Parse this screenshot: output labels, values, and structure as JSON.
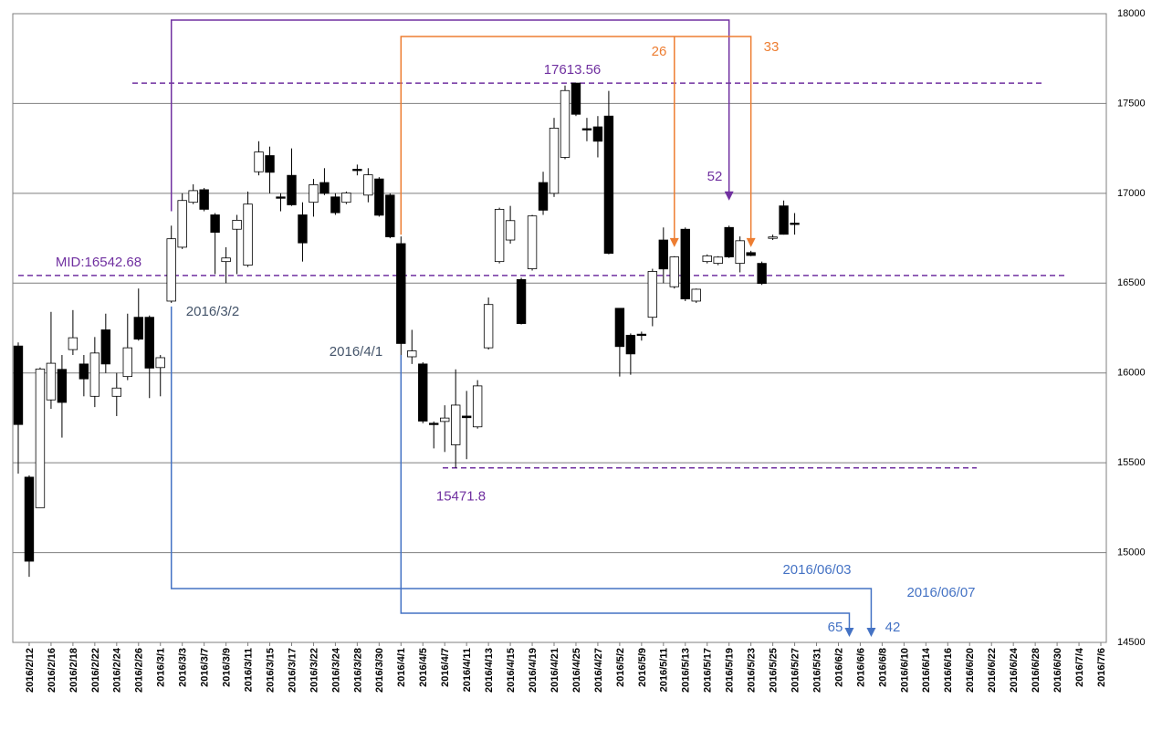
{
  "chart_data": {
    "type": "candlestick",
    "categories": [
      null,
      "2016/2/12",
      null,
      "2016/2/16",
      null,
      "2016/2/18",
      null,
      "2016/2/22",
      null,
      "2016/2/24",
      null,
      "2016/2/26",
      null,
      "2016/3/1",
      null,
      "2016/3/3",
      null,
      "2016/3/7",
      null,
      "2016/3/9",
      null,
      "2016/3/11",
      null,
      "2016/3/15",
      null,
      "2016/3/17",
      null,
      "2016/3/22",
      null,
      "2016/3/24",
      null,
      "2016/3/28",
      null,
      "2016/3/30",
      null,
      "2016/4/1",
      null,
      "2016/4/5",
      null,
      "2016/4/7",
      null,
      "2016/4/11",
      null,
      "2016/4/13",
      null,
      "2016/4/15",
      null,
      "2016/4/19",
      null,
      "2016/4/21",
      null,
      "2016/4/25",
      null,
      "2016/4/27",
      null,
      "2016/5/2",
      null,
      "2016/5/9",
      null,
      "2016/5/11",
      null,
      "2016/5/13",
      null,
      "2016/5/17",
      null,
      "2016/5/19",
      null,
      "2016/5/23",
      null,
      "2016/5/25",
      null,
      "2016/5/27",
      null,
      "2016/5/31",
      null,
      "2016/6/2",
      null,
      "2016/6/6",
      null,
      "2016/6/8",
      null,
      "2016/6/10",
      null,
      "2016/6/14",
      null,
      "2016/6/16",
      null,
      "2016/6/20",
      null,
      "2016/6/22",
      null,
      "2016/6/24",
      null,
      "2016/6/28",
      null,
      "2016/6/30",
      null,
      "2016/7/4",
      null,
      "2016/7/6"
    ],
    "open": [
      16150,
      15420,
      15250,
      15850,
      16020,
      16130,
      16050,
      15870,
      16240,
      15870,
      15980,
      16310,
      16310,
      16030,
      16400,
      16700,
      16950,
      17020,
      16880,
      16620,
      16800,
      16600,
      17120,
      17210,
      16980,
      17100,
      16880,
      16950,
      17060,
      16980,
      16950,
      17134,
      16990,
      17080,
      16990,
      16720,
      16090,
      16050,
      15720,
      15730,
      15600,
      15760,
      15700,
      16140,
      16620,
      16740,
      16520,
      16580,
      17060,
      17000,
      17200,
      17613.56,
      17360,
      17370,
      17430,
      16360,
      16210,
      16216,
      16310,
      16740,
      16480,
      16800,
      16400,
      16620,
      16610,
      16810,
      16610,
      16670,
      16610,
      16750,
      16930,
      16834,
      null,
      null,
      null,
      null,
      null,
      null,
      null,
      null,
      null,
      null,
      null,
      null,
      null,
      null,
      null,
      null,
      null,
      null,
      null,
      null,
      null,
      null,
      null,
      null,
      null,
      null,
      null,
      null
    ],
    "high": [
      16170,
      15430,
      16030,
      16340,
      16100,
      16350,
      16100,
      16200,
      16330,
      16000,
      16330,
      16470,
      16320,
      16100,
      16820,
      17000,
      17050,
      17030,
      16890,
      16700,
      16880,
      17010,
      17290,
      17260,
      17000,
      17250,
      16950,
      17080,
      17140,
      17000,
      17010,
      17160,
      17140,
      17090,
      17000,
      16760,
      16240,
      16060,
      15730,
      15820,
      16020,
      15900,
      15960,
      16420,
      16920,
      16930,
      16530,
      16880,
      17120,
      17420,
      17600,
      17613.56,
      17420,
      17430,
      17570,
      16360,
      16220,
      16230,
      16580,
      16810,
      16650,
      16810,
      16470,
      16660,
      16650,
      16820,
      16760,
      16680,
      16620,
      16770,
      16960,
      16890,
      null,
      null,
      null,
      null,
      null,
      null,
      null,
      null,
      null,
      null,
      null,
      null,
      null,
      null,
      null,
      null,
      null,
      null,
      null,
      null,
      null,
      null,
      null,
      null,
      null,
      null,
      null,
      null
    ],
    "low": [
      15440,
      14865,
      15250,
      15800,
      15640,
      16100,
      15870,
      15810,
      16000,
      15760,
      15960,
      16180,
      15860,
      15870,
      16390,
      16690,
      16940,
      16900,
      16550,
      16500,
      16550,
      16590,
      17100,
      17000,
      16900,
      16930,
      16620,
      16870,
      16990,
      16880,
      16940,
      17100,
      16950,
      16870,
      16750,
      16100,
      16050,
      15720,
      15580,
      15560,
      15471.8,
      15520,
      15690,
      16130,
      16610,
      16720,
      16270,
      16570,
      16880,
      16980,
      17190,
      17430,
      17290,
      17200,
      16660,
      15980,
      15990,
      16180,
      16260,
      16500,
      16470,
      16400,
      16390,
      16610,
      16600,
      16640,
      16560,
      16650,
      16490,
      16740,
      16770,
      16770,
      null,
      null,
      null,
      null,
      null,
      null,
      null,
      null,
      null,
      null,
      null,
      null,
      null,
      null,
      null,
      null,
      null,
      null,
      null,
      null,
      null,
      null,
      null,
      null,
      null,
      null,
      null,
      null
    ],
    "close": [
      15713,
      14952,
      16022,
      16054,
      15836,
      16196,
      15967,
      16111,
      16050,
      15916,
      16140,
      16188,
      16027,
      16085,
      16747,
      16960,
      17015,
      16911,
      16783,
      16640,
      16850,
      16940,
      17230,
      17117,
      16974,
      16936,
      16724,
      17048,
      17000,
      16892,
      17002,
      17134,
      17103,
      16878,
      16758,
      16164,
      16123,
      15732,
      15715,
      15749,
      15821,
      15751,
      15928,
      16381,
      16911,
      16848,
      16275,
      16874,
      16906,
      17363,
      17572,
      17440,
      17353,
      17290,
      16666,
      16147,
      16106,
      16216,
      16565,
      16579,
      16646,
      16412,
      16466,
      16652,
      16645,
      16646,
      16736,
      16654,
      16498,
      16757,
      16772,
      16834,
      null,
      null,
      null,
      null,
      null,
      null,
      null,
      null,
      null,
      null,
      null,
      null,
      null,
      null,
      null,
      null,
      null,
      null,
      null,
      null,
      null,
      null,
      null,
      null,
      null,
      null,
      null,
      null
    ],
    "ylim": [
      14500,
      18000
    ],
    "yticks": [
      14500,
      15000,
      15500,
      16000,
      16500,
      17000,
      17500,
      18000
    ],
    "grid": true,
    "levels": [
      {
        "value": 17613.56,
        "label": "17613.56"
      },
      {
        "value": 16542.68,
        "label": "MID:16542.68"
      },
      {
        "value": 15471.8,
        "label": "15471.8"
      }
    ],
    "level_color": "#7030a0",
    "markers": [
      "2016/3/2",
      "2016/4/1"
    ],
    "spans": [
      52,
      26,
      33
    ],
    "projections": [
      {
        "date": "2016/06/03",
        "count": 65
      },
      {
        "date": "2016/06/07",
        "count": 42
      }
    ]
  }
}
